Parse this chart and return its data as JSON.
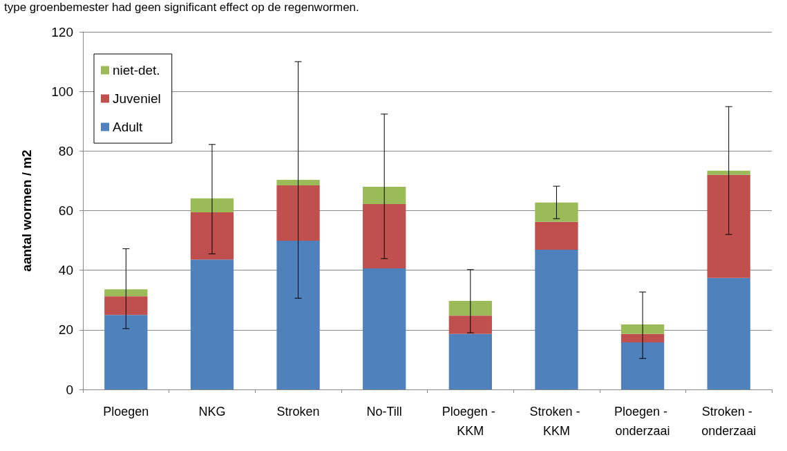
{
  "chart_data": {
    "type": "bar",
    "stacked": true,
    "annotations": [
      "type groenbemester had geen significant effect op de regenwormen."
    ],
    "ylabel": "aantal wormen / m2",
    "categories": [
      "Ploegen",
      "NKG",
      "Stroken",
      "No-Till",
      "Ploegen - KKM",
      "Stroken - KKM",
      "Ploegen - onderzaai",
      "Stroken - onderzaai"
    ],
    "series": [
      {
        "name": "Adult",
        "color": "#4f81bd",
        "values": [
          25,
          43.6,
          49.9,
          40.6,
          18.6,
          46.9,
          15.8,
          37.4
        ]
      },
      {
        "name": "Juveniel",
        "color": "#c0504d",
        "values": [
          6.3,
          15.8,
          18.6,
          21.6,
          6.2,
          9.3,
          2.8,
          34.6
        ]
      },
      {
        "name": "niet-det.",
        "color": "#9bbb59",
        "values": [
          2.3,
          4.7,
          1.8,
          5.8,
          4.9,
          6.5,
          3.2,
          1.4
        ],
        "errors": [
          [
            20.4,
            47.2
          ],
          [
            45.5,
            82.2
          ],
          [
            30.6,
            110
          ],
          [
            43.9,
            92.4
          ],
          [
            19.0,
            40.2
          ],
          [
            57.3,
            68.2
          ],
          [
            10.4,
            32.7
          ],
          [
            52.0,
            94.9
          ]
        ]
      }
    ],
    "ylim": [
      0,
      120
    ],
    "yticks": [
      0,
      20,
      40,
      60,
      80,
      100,
      120
    ],
    "grid": "y",
    "legend": "top left"
  }
}
